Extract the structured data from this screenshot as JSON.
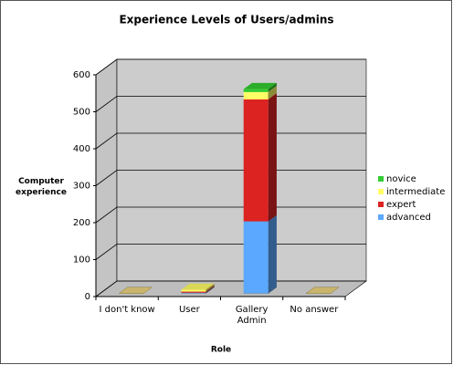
{
  "chart_data": {
    "type": "bar3d_stacked",
    "title": "Experience Levels of Users/admins",
    "x_label": "Role",
    "y_label": "Computer experience",
    "categories": [
      "I don't know",
      "User",
      "Gallery Admin",
      "No answer"
    ],
    "series": [
      {
        "name": "novice",
        "color": "#33cc33",
        "values": [
          0,
          0,
          8,
          0
        ]
      },
      {
        "name": "intermediate",
        "color": "#ffff66",
        "values": [
          0,
          5,
          20,
          0
        ]
      },
      {
        "name": "expert",
        "color": "#dd2222",
        "values": [
          0,
          3,
          330,
          0
        ]
      },
      {
        "name": "advanced",
        "color": "#5aa8ff",
        "values": [
          0,
          2,
          195,
          0
        ]
      }
    ],
    "ylim": [
      0,
      600
    ],
    "yticks": [
      0,
      100,
      200,
      300,
      400,
      500,
      600
    ],
    "grid": true
  }
}
